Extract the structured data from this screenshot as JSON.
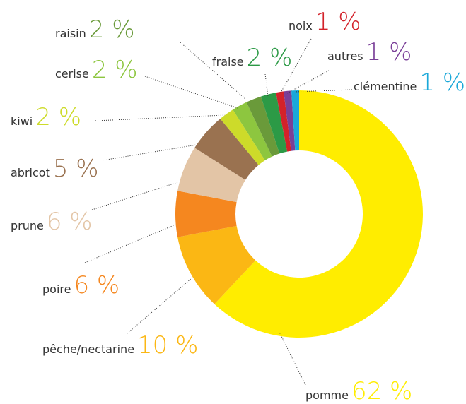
{
  "chart_data": {
    "type": "donut",
    "categories": [
      "pomme",
      "pêche/nectarine",
      "poire",
      "prune",
      "abricot",
      "kiwi",
      "cerise",
      "raisin",
      "fraise",
      "noix",
      "autres",
      "clémentine"
    ],
    "values": [
      62,
      10,
      6,
      6,
      5,
      2,
      2,
      2,
      2,
      1,
      1,
      1
    ],
    "value_labels": [
      "62 %",
      "10 %",
      "6 %",
      "6 %",
      "5 %",
      "2 %",
      "2 %",
      "2 %",
      "2 %",
      "1 %",
      "1 %",
      "1 %"
    ],
    "colors": [
      "#ffed00",
      "#fbb714",
      "#f5871f",
      "#e3c5a6",
      "#9a7250",
      "#cddb2a",
      "#8dc63f",
      "#6a9a3a",
      "#2c9a46",
      "#d3222a",
      "#7a3f98",
      "#1ba8d9"
    ]
  }
}
